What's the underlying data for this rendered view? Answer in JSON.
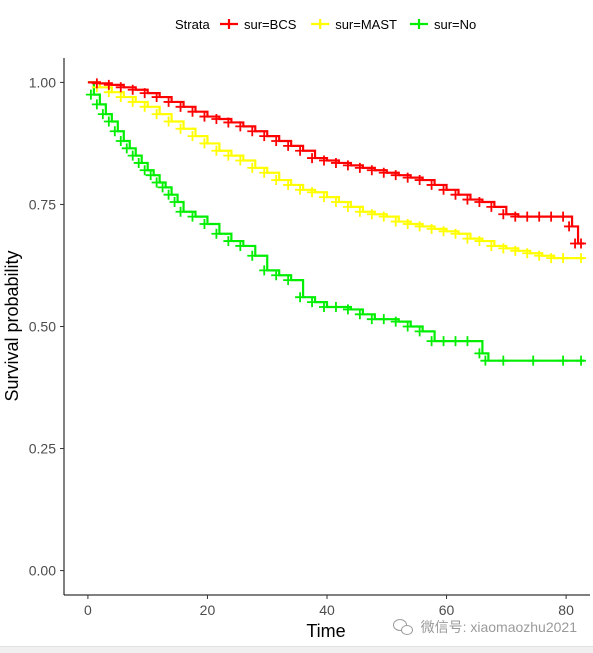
{
  "chart_data": {
    "type": "line",
    "title": "",
    "xlabel": "Time",
    "ylabel": "Survival probability",
    "xlim": [
      -4,
      84
    ],
    "ylim": [
      -0.05,
      1.05
    ],
    "x_ticks": [
      0,
      20,
      40,
      60,
      80
    ],
    "y_ticks": [
      0.0,
      0.25,
      0.5,
      0.75,
      1.0
    ],
    "x_tick_labels": [
      "0",
      "20",
      "40",
      "60",
      "80"
    ],
    "y_tick_labels": [
      "0.00",
      "0.25",
      "0.50",
      "0.75",
      "1.00"
    ],
    "grid": false,
    "legend": {
      "position": "top",
      "title": "Strata"
    },
    "series": [
      {
        "name": "sur=BCS",
        "color": "#ff0000",
        "x": [
          0,
          2,
          4,
          6,
          8,
          10,
          12,
          14,
          16,
          18,
          20,
          22,
          24,
          26,
          28,
          30,
          32,
          34,
          36,
          38,
          40,
          42,
          44,
          46,
          48,
          50,
          52,
          54,
          56,
          58,
          60,
          62,
          64,
          66,
          68,
          70,
          72,
          74,
          76,
          78,
          80,
          81,
          82,
          83
        ],
        "y": [
          1.0,
          0.998,
          0.995,
          0.99,
          0.985,
          0.978,
          0.97,
          0.96,
          0.95,
          0.94,
          0.93,
          0.925,
          0.918,
          0.91,
          0.9,
          0.89,
          0.88,
          0.87,
          0.86,
          0.845,
          0.84,
          0.835,
          0.83,
          0.825,
          0.82,
          0.815,
          0.81,
          0.805,
          0.8,
          0.79,
          0.78,
          0.77,
          0.76,
          0.755,
          0.745,
          0.73,
          0.725,
          0.725,
          0.725,
          0.725,
          0.725,
          0.705,
          0.67,
          0.67
        ]
      },
      {
        "name": "sur=MAST",
        "color": "#ffff00",
        "x": [
          0,
          2,
          4,
          6,
          8,
          10,
          12,
          14,
          16,
          18,
          20,
          22,
          24,
          26,
          28,
          30,
          32,
          34,
          36,
          38,
          40,
          42,
          44,
          46,
          48,
          50,
          52,
          54,
          56,
          58,
          60,
          62,
          64,
          66,
          68,
          70,
          72,
          74,
          76,
          78,
          80,
          83
        ],
        "y": [
          1.0,
          0.99,
          0.98,
          0.97,
          0.96,
          0.95,
          0.935,
          0.92,
          0.905,
          0.89,
          0.875,
          0.86,
          0.85,
          0.84,
          0.825,
          0.815,
          0.8,
          0.79,
          0.78,
          0.775,
          0.765,
          0.755,
          0.745,
          0.735,
          0.73,
          0.725,
          0.715,
          0.71,
          0.705,
          0.7,
          0.695,
          0.69,
          0.68,
          0.675,
          0.665,
          0.66,
          0.655,
          0.65,
          0.645,
          0.64,
          0.64,
          0.64
        ]
      },
      {
        "name": "sur=No",
        "color": "#00ee00",
        "x": [
          0,
          1,
          2,
          3,
          4,
          5,
          6,
          7,
          8,
          9,
          10,
          11,
          12,
          13,
          14,
          15,
          16,
          18,
          20,
          22,
          24,
          26,
          28,
          30,
          32,
          34,
          36,
          38,
          40,
          42,
          44,
          46,
          48,
          50,
          52,
          54,
          56,
          58,
          60,
          62,
          64,
          66,
          67,
          70,
          75,
          80,
          83
        ],
        "y": [
          1.0,
          0.975,
          0.955,
          0.935,
          0.92,
          0.9,
          0.88,
          0.865,
          0.85,
          0.835,
          0.82,
          0.81,
          0.795,
          0.785,
          0.77,
          0.755,
          0.735,
          0.725,
          0.71,
          0.69,
          0.675,
          0.665,
          0.645,
          0.615,
          0.605,
          0.595,
          0.56,
          0.55,
          0.54,
          0.54,
          0.535,
          0.525,
          0.515,
          0.515,
          0.51,
          0.5,
          0.49,
          0.47,
          0.47,
          0.47,
          0.47,
          0.445,
          0.43,
          0.43,
          0.43,
          0.43,
          0.43
        ]
      }
    ]
  },
  "watermark": {
    "text": "微信号: xiaomaozhu2021",
    "icon": "wechat-icon"
  }
}
